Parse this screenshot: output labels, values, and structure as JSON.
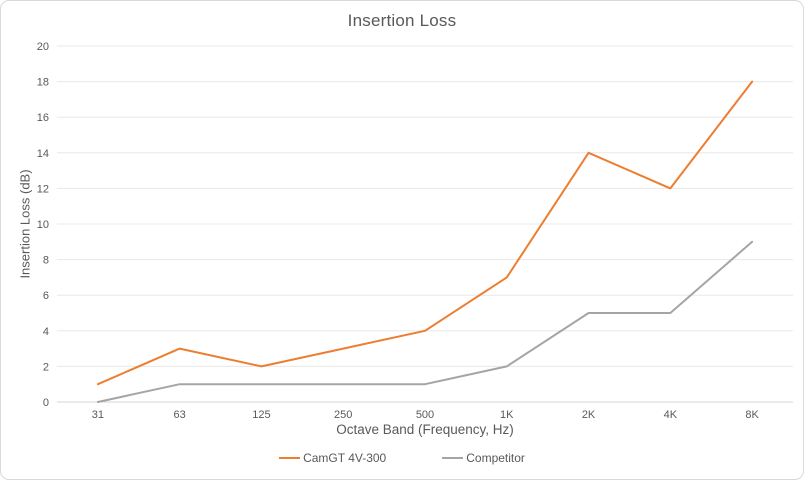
{
  "chart_data": {
    "type": "line",
    "title": "Insertion Loss",
    "xlabel": "Octave Band (Frequency, Hz)",
    "ylabel": "Insertion Loss (dB)",
    "categories": [
      "31",
      "63",
      "125",
      "250",
      "500",
      "1K",
      "2K",
      "4K",
      "8K"
    ],
    "series": [
      {
        "name": "CamGT 4V-300",
        "color": "#ED7D31",
        "values": [
          1,
          3,
          2,
          3,
          4,
          7,
          14,
          12,
          18
        ]
      },
      {
        "name": "Competitor",
        "color": "#A5A5A5",
        "values": [
          0,
          1,
          1,
          1,
          1,
          2,
          5,
          5,
          9
        ]
      }
    ],
    "ylim": [
      0,
      20
    ],
    "ytick_step": 2,
    "grid": "horizontal",
    "legend_position": "bottom",
    "colors": {
      "text": "#595959",
      "gridline": "#E8E8E8",
      "axis_line": "#D6D6D6",
      "frame_border": "#D9D9D9"
    }
  }
}
